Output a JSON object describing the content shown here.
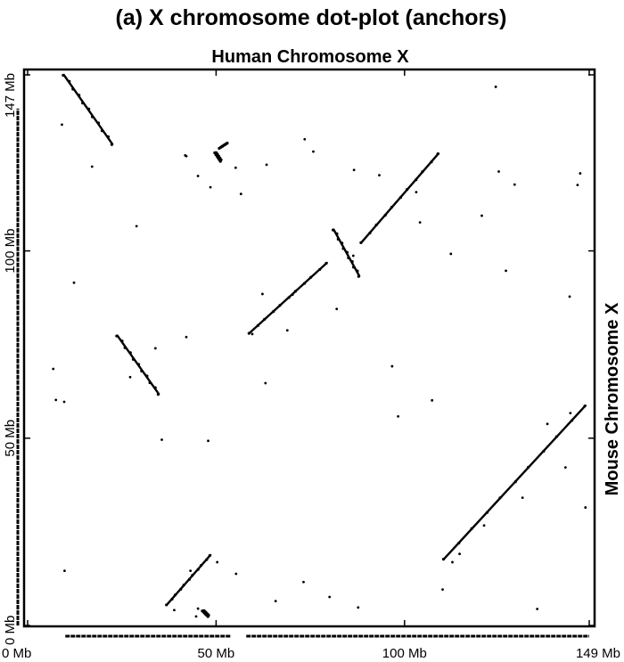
{
  "chart_data": {
    "type": "scatter",
    "title": "(a) X chromosome dot-plot (anchors)",
    "xlabel": "Human Chromosome X",
    "ylabel": "Mouse Chromosome X",
    "xlim": [
      0,
      149
    ],
    "ylim": [
      0,
      147
    ],
    "x_ticks": [
      {
        "value": 0,
        "label": "0 Mb"
      },
      {
        "value": 50,
        "label": "50 Mb"
      },
      {
        "value": 100,
        "label": "100 Mb"
      },
      {
        "value": 149,
        "label": "149 Mb"
      }
    ],
    "y_ticks": [
      {
        "value": 0,
        "label": "0 Mb"
      },
      {
        "value": 50,
        "label": "50 Mb"
      },
      {
        "value": 100,
        "label": "100 Mb"
      },
      {
        "value": 147,
        "label": "147 Mb"
      }
    ],
    "color": "#000000",
    "segments": [
      {
        "name": "seg-1",
        "start": [
          9.6,
          147.0
        ],
        "end": [
          22.5,
          128.5
        ]
      },
      {
        "name": "seg-2",
        "start": [
          51.0,
          127.5
        ],
        "end": [
          53.0,
          128.8
        ]
      },
      {
        "name": "seg-3",
        "start": [
          49.8,
          126.3
        ],
        "end": [
          51.3,
          124.0
        ]
      },
      {
        "name": "seg-4",
        "start": [
          88.6,
          102.3
        ],
        "end": [
          109.0,
          126.0
        ]
      },
      {
        "name": "seg-5",
        "start": [
          81.2,
          105.7
        ],
        "end": [
          88.0,
          93.3
        ]
      },
      {
        "name": "seg-6",
        "start": [
          58.9,
          78.1
        ],
        "end": [
          79.4,
          96.8
        ]
      },
      {
        "name": "seg-7",
        "start": [
          23.8,
          77.4
        ],
        "end": [
          34.8,
          61.8
        ]
      },
      {
        "name": "seg-8",
        "start": [
          110.5,
          17.8
        ],
        "end": [
          148.0,
          58.7
        ]
      },
      {
        "name": "seg-9",
        "start": [
          37.0,
          5.6
        ],
        "end": [
          48.5,
          18.8
        ]
      },
      {
        "name": "seg-10",
        "start": [
          46.5,
          4.0
        ],
        "end": [
          48.0,
          2.5
        ]
      }
    ],
    "points": [
      [
        9.1,
        133.7
      ],
      [
        17.1,
        122.5
      ],
      [
        41.8,
        125.5
      ],
      [
        42.1,
        125.3
      ],
      [
        55.2,
        122.2
      ],
      [
        45.2,
        120.0
      ],
      [
        48.5,
        117.0
      ],
      [
        63.4,
        123.0
      ],
      [
        73.5,
        129.8
      ],
      [
        75.8,
        126.5
      ],
      [
        86.6,
        121.6
      ],
      [
        93.3,
        120.2
      ],
      [
        103.1,
        115.7
      ],
      [
        125.0,
        121.2
      ],
      [
        129.2,
        117.7
      ],
      [
        145.9,
        117.6
      ],
      [
        146.6,
        120.7
      ],
      [
        124.2,
        143.8
      ],
      [
        28.9,
        106.6
      ],
      [
        56.6,
        115.2
      ],
      [
        104.1,
        107.6
      ],
      [
        120.5,
        109.4
      ],
      [
        86.4,
        98.7
      ],
      [
        112.3,
        99.2
      ],
      [
        126.9,
        94.7
      ],
      [
        12.3,
        91.5
      ],
      [
        82.0,
        84.5
      ],
      [
        143.8,
        87.8
      ],
      [
        70.3,
        88.3
      ],
      [
        62.3,
        88.5
      ],
      [
        42.1,
        77.0
      ],
      [
        59.6,
        77.8
      ],
      [
        68.9,
        78.8
      ],
      [
        33.9,
        74.0
      ],
      [
        27.2,
        66.3
      ],
      [
        6.8,
        68.5
      ],
      [
        7.5,
        60.2
      ],
      [
        9.7,
        59.7
      ],
      [
        63.1,
        64.7
      ],
      [
        96.7,
        69.2
      ],
      [
        107.3,
        60.1
      ],
      [
        98.3,
        55.8
      ],
      [
        137.9,
        53.8
      ],
      [
        144.0,
        56.7
      ],
      [
        35.6,
        49.6
      ],
      [
        47.9,
        49.3
      ],
      [
        142.7,
        42.2
      ],
      [
        148.0,
        31.5
      ],
      [
        121.1,
        26.7
      ],
      [
        131.3,
        34.1
      ],
      [
        112.7,
        16.9
      ],
      [
        114.6,
        19.1
      ],
      [
        110.1,
        9.6
      ],
      [
        9.8,
        14.6
      ],
      [
        55.3,
        13.8
      ],
      [
        73.2,
        11.6
      ],
      [
        80.1,
        7.6
      ],
      [
        65.8,
        6.5
      ],
      [
        38.9,
        4.1
      ],
      [
        44.7,
        2.4
      ],
      [
        45.2,
        4.5
      ],
      [
        87.7,
        4.8
      ],
      [
        135.2,
        4.4
      ],
      [
        50.3,
        16.9
      ],
      [
        43.2,
        14.6
      ]
    ],
    "rug": {
      "bottom": [
        [
          10,
          54
        ],
        [
          58,
          149
        ]
      ],
      "left": [
        [
          0,
          60
        ],
        [
          60,
          102
        ],
        [
          102,
          138
        ]
      ]
    },
    "grid": false,
    "legend": "none"
  }
}
